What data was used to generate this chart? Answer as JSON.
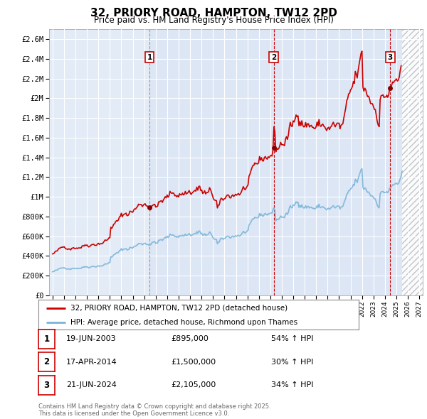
{
  "title": "32, PRIORY ROAD, HAMPTON, TW12 2PD",
  "subtitle": "Price paid vs. HM Land Registry's House Price Index (HPI)",
  "background_color": "#ffffff",
  "plot_bg_color": "#dce6f5",
  "grid_color": "#ffffff",
  "ylim": [
    0,
    2700000
  ],
  "yticks": [
    0,
    200000,
    400000,
    600000,
    800000,
    1000000,
    1200000,
    1400000,
    1600000,
    1800000,
    2000000,
    2200000,
    2400000,
    2600000
  ],
  "ytick_labels": [
    "£0",
    "£200K",
    "£400K",
    "£600K",
    "£800K",
    "£1M",
    "£1.2M",
    "£1.4M",
    "£1.6M",
    "£1.8M",
    "£2M",
    "£2.2M",
    "£2.4M",
    "£2.6M"
  ],
  "hpi_line_color": "#7ab4d8",
  "price_line_color": "#cc0000",
  "sale_marker_color": "#880000",
  "sale1_vline_color": "#999999",
  "sale23_vline_color": "#cc0000",
  "sales": [
    {
      "date": 2003.47,
      "price": 895000,
      "label": "1",
      "date_str": "19-JUN-2003",
      "price_str": "£895,000",
      "pct": "54% ↑ HPI"
    },
    {
      "date": 2014.3,
      "price": 1500000,
      "label": "2",
      "date_str": "17-APR-2014",
      "price_str": "£1,500,000",
      "pct": "30% ↑ HPI"
    },
    {
      "date": 2024.47,
      "price": 2105000,
      "label": "3",
      "date_str": "21-JUN-2024",
      "price_str": "£2,105,000",
      "pct": "34% ↑ HPI"
    }
  ],
  "legend_entries": [
    "32, PRIORY ROAD, HAMPTON, TW12 2PD (detached house)",
    "HPI: Average price, detached house, Richmond upon Thames"
  ],
  "footer": "Contains HM Land Registry data © Crown copyright and database right 2025.\nThis data is licensed under the Open Government Licence v3.0.",
  "future_start": 2025.47,
  "xlim_left": 1994.7,
  "xlim_right": 2027.3,
  "figsize": [
    6.0,
    5.9
  ],
  "dpi": 100
}
